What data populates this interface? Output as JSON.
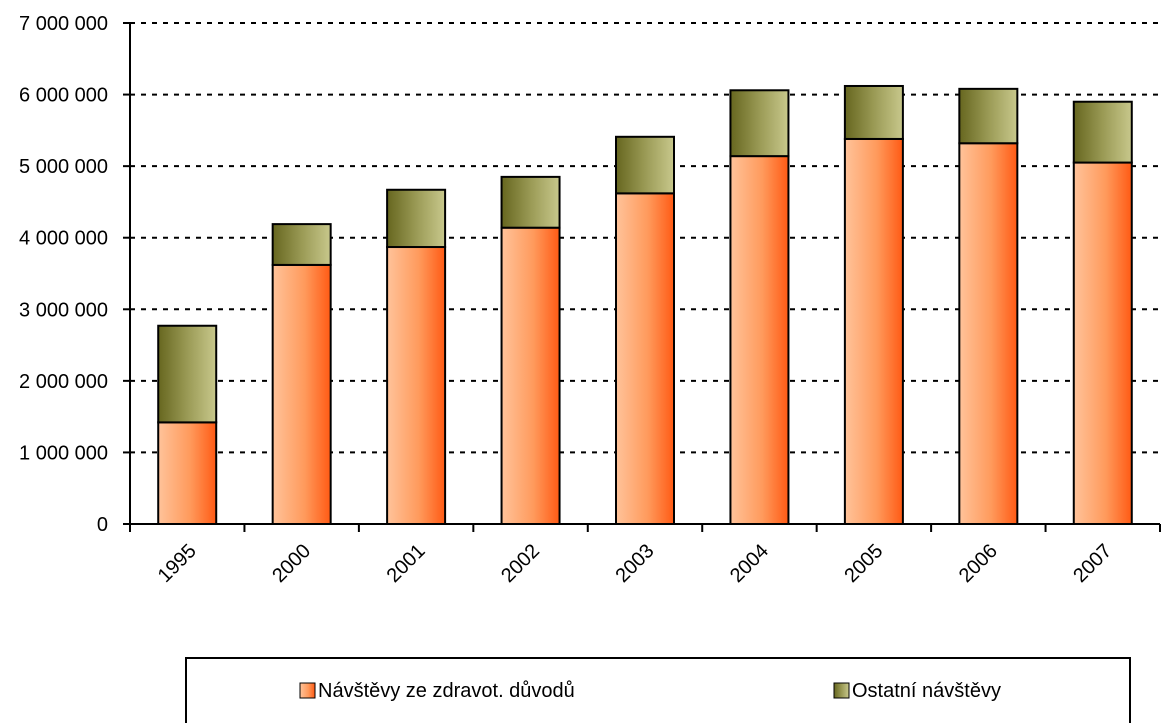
{
  "chart_data": {
    "type": "bar",
    "stacked": true,
    "title": "",
    "xlabel": "",
    "ylabel": "",
    "categories": [
      "1995",
      "2000",
      "2001",
      "2002",
      "2003",
      "2004",
      "2005",
      "2006",
      "2007"
    ],
    "series": [
      {
        "name": "Návštěvy ze zdravot. důvodů",
        "color": "#ff7a33",
        "values": [
          1420000,
          3620000,
          3870000,
          4140000,
          4620000,
          5140000,
          5380000,
          5320000,
          5050000
        ]
      },
      {
        "name": "Ostatní návštěvy",
        "color": "#8a8a40",
        "values": [
          1350000,
          570000,
          800000,
          710000,
          790000,
          920000,
          740000,
          760000,
          850000
        ]
      }
    ],
    "ylim": [
      0,
      7000000
    ],
    "yticks": [
      0,
      1000000,
      2000000,
      3000000,
      4000000,
      5000000,
      6000000,
      7000000
    ],
    "ytick_labels": [
      "0",
      "1 000 000",
      "2 000 000",
      "3 000 000",
      "4 000 000",
      "5 000 000",
      "6 000 000",
      "7 000 000"
    ],
    "grid": "dashed horizontal",
    "legend_position": "bottom"
  }
}
